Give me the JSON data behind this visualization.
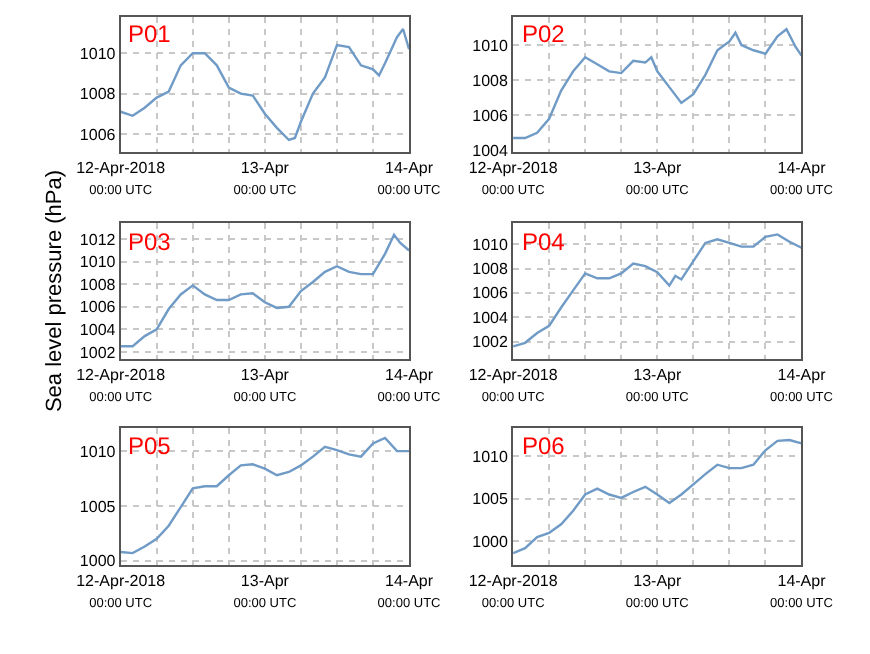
{
  "chart_data": [
    {
      "type": "line",
      "title": "P01",
      "grid": true,
      "xlim": [
        "2018-04-12T00:00",
        "2018-04-14T00:00"
      ],
      "xticks": [
        {
          "value": "2018-04-12T00:00",
          "label": "12-Apr-2018\n00:00 UTC"
        },
        {
          "value": "2018-04-12T06:00",
          "label": null
        },
        {
          "value": "2018-04-12T12:00",
          "label": null
        },
        {
          "value": "2018-04-12T18:00",
          "label": null
        },
        {
          "value": "2018-04-13T00:00",
          "label": "13-Apr\n00:00 UTC"
        },
        {
          "value": "2018-04-13T06:00",
          "label": null
        },
        {
          "value": "2018-04-13T12:00",
          "label": null
        },
        {
          "value": "2018-04-13T18:00",
          "label": null
        },
        {
          "value": "2018-04-14T00:00",
          "label": "14-Apr\n00:00 UTC"
        }
      ],
      "ylim": [
        1005.1,
        1011.8
      ],
      "yticks": [
        1006,
        1008,
        1010
      ],
      "x": [
        "2018-04-12T00:00",
        "2018-04-12T02:00",
        "2018-04-12T04:00",
        "2018-04-12T06:00",
        "2018-04-12T08:00",
        "2018-04-12T10:00",
        "2018-04-12T12:00",
        "2018-04-12T14:00",
        "2018-04-12T16:00",
        "2018-04-12T18:00",
        "2018-04-12T20:00",
        "2018-04-12T22:00",
        "2018-04-13T00:00",
        "2018-04-13T02:00",
        "2018-04-13T04:00",
        "2018-04-13T05:00",
        "2018-04-13T06:00",
        "2018-04-13T08:00",
        "2018-04-13T10:00",
        "2018-04-13T12:00",
        "2018-04-13T14:00",
        "2018-04-13T16:00",
        "2018-04-13T18:00",
        "2018-04-13T19:00",
        "2018-04-13T20:00",
        "2018-04-13T22:00",
        "2018-04-13T23:00",
        "2018-04-14T00:00"
      ],
      "series": [
        {
          "color": "#6f9bc6",
          "values": [
            1007.1,
            1006.9,
            1007.3,
            1007.8,
            1008.1,
            1009.4,
            1010.0,
            1010.0,
            1009.4,
            1008.3,
            1008.0,
            1007.9,
            1007.0,
            1006.3,
            1005.7,
            1005.8,
            1006.6,
            1008.0,
            1008.8,
            1010.4,
            1010.3,
            1009.4,
            1009.2,
            1008.9,
            1009.5,
            1010.8,
            1011.2,
            1010.2
          ]
        }
      ]
    },
    {
      "type": "line",
      "title": "P02",
      "grid": true,
      "xlim": [
        "2018-04-12T00:00",
        "2018-04-14T00:00"
      ],
      "xticks": [
        {
          "value": "2018-04-12T00:00",
          "label": "12-Apr-2018\n00:00 UTC"
        },
        {
          "value": "2018-04-12T06:00",
          "label": null
        },
        {
          "value": "2018-04-12T12:00",
          "label": null
        },
        {
          "value": "2018-04-12T18:00",
          "label": null
        },
        {
          "value": "2018-04-13T00:00",
          "label": "13-Apr\n00:00 UTC"
        },
        {
          "value": "2018-04-13T06:00",
          "label": null
        },
        {
          "value": "2018-04-13T12:00",
          "label": null
        },
        {
          "value": "2018-04-13T18:00",
          "label": null
        },
        {
          "value": "2018-04-14T00:00",
          "label": "14-Apr\n00:00 UTC"
        }
      ],
      "ylim": [
        1003.9,
        1011.6
      ],
      "yticks": [
        1004,
        1006,
        1008,
        1010
      ],
      "x": [
        "2018-04-12T00:00",
        "2018-04-12T02:00",
        "2018-04-12T04:00",
        "2018-04-12T06:00",
        "2018-04-12T08:00",
        "2018-04-12T10:00",
        "2018-04-12T12:00",
        "2018-04-12T14:00",
        "2018-04-12T16:00",
        "2018-04-12T18:00",
        "2018-04-12T20:00",
        "2018-04-12T22:00",
        "2018-04-12T23:00",
        "2018-04-13T00:00",
        "2018-04-13T02:00",
        "2018-04-13T04:00",
        "2018-04-13T06:00",
        "2018-04-13T08:00",
        "2018-04-13T10:00",
        "2018-04-13T12:00",
        "2018-04-13T13:00",
        "2018-04-13T14:00",
        "2018-04-13T16:00",
        "2018-04-13T18:00",
        "2018-04-13T20:00",
        "2018-04-13T21:30",
        "2018-04-13T23:00",
        "2018-04-14T00:00"
      ],
      "series": [
        {
          "color": "#6f9bc6",
          "values": [
            1004.7,
            1004.7,
            1005.0,
            1005.8,
            1007.4,
            1008.5,
            1009.3,
            1008.9,
            1008.5,
            1008.4,
            1009.1,
            1009.0,
            1009.3,
            1008.5,
            1007.6,
            1006.7,
            1007.2,
            1008.3,
            1009.7,
            1010.2,
            1010.7,
            1010.0,
            1009.7,
            1009.5,
            1010.5,
            1010.9,
            1009.9,
            1009.4
          ]
        }
      ]
    },
    {
      "type": "line",
      "title": "P03",
      "ylabel": "Sea level pressure (hPa)",
      "grid": true,
      "xlim": [
        "2018-04-12T00:00",
        "2018-04-14T00:00"
      ],
      "xticks": [
        {
          "value": "2018-04-12T00:00",
          "label": "12-Apr-2018\n00:00 UTC"
        },
        {
          "value": "2018-04-12T06:00",
          "label": null
        },
        {
          "value": "2018-04-12T12:00",
          "label": null
        },
        {
          "value": "2018-04-12T18:00",
          "label": null
        },
        {
          "value": "2018-04-13T00:00",
          "label": "13-Apr\n00:00 UTC"
        },
        {
          "value": "2018-04-13T06:00",
          "label": null
        },
        {
          "value": "2018-04-13T12:00",
          "label": null
        },
        {
          "value": "2018-04-13T18:00",
          "label": null
        },
        {
          "value": "2018-04-14T00:00",
          "label": "14-Apr\n00:00 UTC"
        }
      ],
      "ylim": [
        1001.4,
        1013.4
      ],
      "yticks": [
        1002,
        1004,
        1006,
        1008,
        1010,
        1012
      ],
      "x": [
        "2018-04-12T00:00",
        "2018-04-12T02:00",
        "2018-04-12T04:00",
        "2018-04-12T06:00",
        "2018-04-12T08:00",
        "2018-04-12T10:00",
        "2018-04-12T12:00",
        "2018-04-12T14:00",
        "2018-04-12T16:00",
        "2018-04-12T18:00",
        "2018-04-12T20:00",
        "2018-04-12T22:00",
        "2018-04-13T00:00",
        "2018-04-13T02:00",
        "2018-04-13T04:00",
        "2018-04-13T05:00",
        "2018-04-13T06:00",
        "2018-04-13T08:00",
        "2018-04-13T10:00",
        "2018-04-13T12:00",
        "2018-04-13T14:00",
        "2018-04-13T16:00",
        "2018-04-13T18:00",
        "2018-04-13T20:00",
        "2018-04-13T21:30",
        "2018-04-13T22:30",
        "2018-04-14T00:00"
      ],
      "series": [
        {
          "color": "#6f9bc6",
          "values": [
            1002.5,
            1002.5,
            1003.4,
            1004.0,
            1005.8,
            1007.1,
            1007.9,
            1007.1,
            1006.6,
            1006.6,
            1007.1,
            1007.2,
            1006.4,
            1005.9,
            1006.0,
            1006.7,
            1007.4,
            1008.2,
            1009.1,
            1009.6,
            1009.1,
            1008.9,
            1008.9,
            1010.7,
            1012.4,
            1011.7,
            1011.0
          ]
        }
      ]
    },
    {
      "type": "line",
      "title": "P04",
      "grid": true,
      "xlim": [
        "2018-04-12T00:00",
        "2018-04-14T00:00"
      ],
      "xticks": [
        {
          "value": "2018-04-12T00:00",
          "label": "12-Apr-2018\n00:00 UTC"
        },
        {
          "value": "2018-04-12T06:00",
          "label": null
        },
        {
          "value": "2018-04-12T12:00",
          "label": null
        },
        {
          "value": "2018-04-12T18:00",
          "label": null
        },
        {
          "value": "2018-04-13T00:00",
          "label": "13-Apr\n00:00 UTC"
        },
        {
          "value": "2018-04-13T06:00",
          "label": null
        },
        {
          "value": "2018-04-13T12:00",
          "label": null
        },
        {
          "value": "2018-04-13T18:00",
          "label": null
        },
        {
          "value": "2018-04-14T00:00",
          "label": "14-Apr\n00:00 UTC"
        }
      ],
      "ylim": [
        1000.6,
        1011.7
      ],
      "yticks": [
        1002,
        1004,
        1006,
        1008,
        1010
      ],
      "x": [
        "2018-04-12T00:00",
        "2018-04-12T02:00",
        "2018-04-12T04:00",
        "2018-04-12T06:00",
        "2018-04-12T08:00",
        "2018-04-12T10:00",
        "2018-04-12T12:00",
        "2018-04-12T14:00",
        "2018-04-12T16:00",
        "2018-04-12T18:00",
        "2018-04-12T20:00",
        "2018-04-12T22:00",
        "2018-04-13T00:00",
        "2018-04-13T02:00",
        "2018-04-13T03:00",
        "2018-04-13T04:00",
        "2018-04-13T06:00",
        "2018-04-13T08:00",
        "2018-04-13T10:00",
        "2018-04-13T12:00",
        "2018-04-13T14:00",
        "2018-04-13T16:00",
        "2018-04-13T18:00",
        "2018-04-13T20:00",
        "2018-04-13T22:00",
        "2018-04-14T00:00"
      ],
      "series": [
        {
          "color": "#6f9bc6",
          "values": [
            1001.6,
            1001.9,
            1002.7,
            1003.3,
            1004.8,
            1006.2,
            1007.6,
            1007.2,
            1007.2,
            1007.6,
            1008.4,
            1008.2,
            1007.7,
            1006.6,
            1007.4,
            1007.1,
            1008.6,
            1010.1,
            1010.4,
            1010.1,
            1009.8,
            1009.8,
            1010.6,
            1010.8,
            1010.2,
            1009.7
          ]
        }
      ]
    },
    {
      "type": "line",
      "title": "P05",
      "grid": true,
      "xlim": [
        "2018-04-12T00:00",
        "2018-04-14T00:00"
      ],
      "xticks": [
        {
          "value": "2018-04-12T00:00",
          "label": "12-Apr-2018\n00:00 UTC"
        },
        {
          "value": "2018-04-12T06:00",
          "label": null
        },
        {
          "value": "2018-04-12T12:00",
          "label": null
        },
        {
          "value": "2018-04-12T18:00",
          "label": null
        },
        {
          "value": "2018-04-13T00:00",
          "label": "13-Apr\n00:00 UTC"
        },
        {
          "value": "2018-04-13T06:00",
          "label": null
        },
        {
          "value": "2018-04-13T12:00",
          "label": null
        },
        {
          "value": "2018-04-13T18:00",
          "label": null
        },
        {
          "value": "2018-04-14T00:00",
          "label": "14-Apr\n00:00 UTC"
        }
      ],
      "ylim": [
        999.6,
        1012.1
      ],
      "yticks": [
        1000,
        1005,
        1010
      ],
      "x": [
        "2018-04-12T00:00",
        "2018-04-12T02:00",
        "2018-04-12T04:00",
        "2018-04-12T06:00",
        "2018-04-12T08:00",
        "2018-04-12T10:00",
        "2018-04-12T12:00",
        "2018-04-12T14:00",
        "2018-04-12T16:00",
        "2018-04-12T18:00",
        "2018-04-12T20:00",
        "2018-04-12T22:00",
        "2018-04-13T00:00",
        "2018-04-13T02:00",
        "2018-04-13T04:00",
        "2018-04-13T06:00",
        "2018-04-13T08:00",
        "2018-04-13T10:00",
        "2018-04-13T12:00",
        "2018-04-13T14:00",
        "2018-04-13T16:00",
        "2018-04-13T18:00",
        "2018-04-13T20:00",
        "2018-04-13T22:00",
        "2018-04-14T00:00"
      ],
      "series": [
        {
          "color": "#6f9bc6",
          "values": [
            1000.8,
            1000.7,
            1001.3,
            1002.0,
            1003.2,
            1004.9,
            1006.6,
            1006.8,
            1006.8,
            1007.8,
            1008.7,
            1008.8,
            1008.4,
            1007.8,
            1008.1,
            1008.7,
            1009.5,
            1010.4,
            1010.1,
            1009.7,
            1009.5,
            1010.7,
            1011.2,
            1010.0,
            1010.0
          ]
        }
      ]
    },
    {
      "type": "line",
      "title": "P06",
      "grid": true,
      "xlim": [
        "2018-04-12T00:00",
        "2018-04-14T00:00"
      ],
      "xticks": [
        {
          "value": "2018-04-12T00:00",
          "label": "12-Apr-2018\n00:00 UTC"
        },
        {
          "value": "2018-04-12T06:00",
          "label": null
        },
        {
          "value": "2018-04-12T12:00",
          "label": null
        },
        {
          "value": "2018-04-12T18:00",
          "label": null
        },
        {
          "value": "2018-04-13T00:00",
          "label": "13-Apr\n00:00 UTC"
        },
        {
          "value": "2018-04-13T06:00",
          "label": null
        },
        {
          "value": "2018-04-13T12:00",
          "label": null
        },
        {
          "value": "2018-04-13T18:00",
          "label": null
        },
        {
          "value": "2018-04-14T00:00",
          "label": "14-Apr\n00:00 UTC"
        }
      ],
      "ylim": [
        997.2,
        1013.3
      ],
      "yticks": [
        1000,
        1005,
        1010
      ],
      "x": [
        "2018-04-12T00:00",
        "2018-04-12T02:00",
        "2018-04-12T04:00",
        "2018-04-12T06:00",
        "2018-04-12T08:00",
        "2018-04-12T10:00",
        "2018-04-12T12:00",
        "2018-04-12T14:00",
        "2018-04-12T16:00",
        "2018-04-12T18:00",
        "2018-04-12T20:00",
        "2018-04-12T22:00",
        "2018-04-13T00:00",
        "2018-04-13T02:00",
        "2018-04-13T04:00",
        "2018-04-13T06:00",
        "2018-04-13T08:00",
        "2018-04-13T10:00",
        "2018-04-13T12:00",
        "2018-04-13T14:00",
        "2018-04-13T16:00",
        "2018-04-13T18:00",
        "2018-04-13T20:00",
        "2018-04-13T22:00",
        "2018-04-14T00:00"
      ],
      "series": [
        {
          "color": "#6f9bc6",
          "values": [
            998.6,
            999.2,
            1000.5,
            1001.0,
            1002.0,
            1003.6,
            1005.5,
            1006.2,
            1005.5,
            1005.1,
            1005.8,
            1006.4,
            1005.5,
            1004.5,
            1005.5,
            1006.7,
            1007.9,
            1009.0,
            1008.6,
            1008.6,
            1009.0,
            1010.7,
            1011.8,
            1011.9,
            1011.5
          ]
        }
      ]
    }
  ]
}
